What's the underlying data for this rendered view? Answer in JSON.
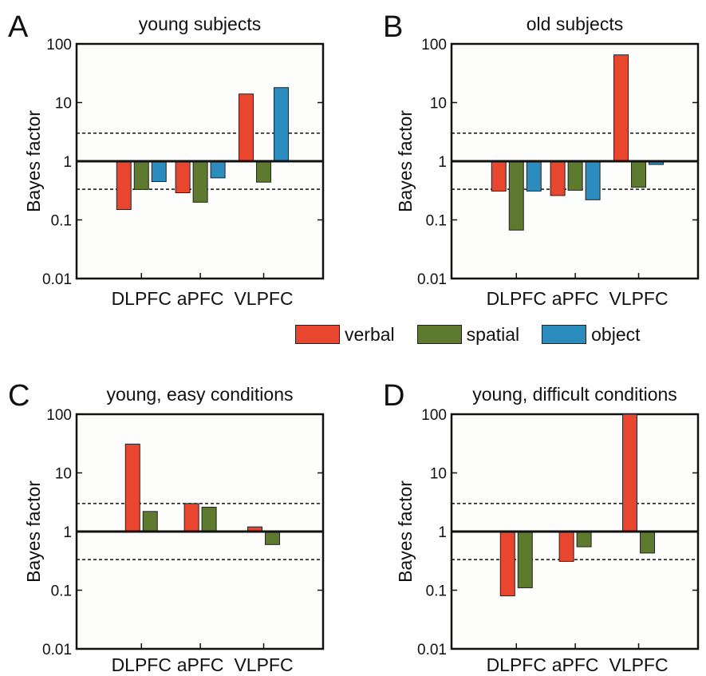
{
  "figure": {
    "panels": [
      {
        "letter": "A",
        "title": "young subjects"
      },
      {
        "letter": "B",
        "title": "old subjects"
      },
      {
        "letter": "C",
        "title": "young, easy conditions"
      },
      {
        "letter": "D",
        "title": "young, difficult conditions"
      }
    ],
    "legend": [
      {
        "label": "verbal",
        "color": "#e8462e"
      },
      {
        "label": "spatial",
        "color": "#5e7a2e"
      },
      {
        "label": "object",
        "color": "#2b8cbd"
      }
    ]
  },
  "chart_data": [
    {
      "type": "bar",
      "panel": "A",
      "title": "young subjects",
      "ylabel": "Bayes factor",
      "yscale": "log",
      "ylim": [
        0.01,
        100
      ],
      "yticks": [
        "0.01",
        "0.1",
        "1",
        "10",
        "100"
      ],
      "baseline": 1,
      "reference_lines": [
        3,
        0.333
      ],
      "categories": [
        "DLPFC",
        "aPFC",
        "VLPFC"
      ],
      "series": [
        {
          "name": "verbal",
          "values": [
            0.15,
            0.29,
            14
          ]
        },
        {
          "name": "spatial",
          "values": [
            0.33,
            0.2,
            0.44
          ]
        },
        {
          "name": "object",
          "values": [
            0.45,
            0.52,
            18
          ]
        }
      ]
    },
    {
      "type": "bar",
      "panel": "B",
      "title": "old subjects",
      "ylabel": "Bayes factor",
      "yscale": "log",
      "ylim": [
        0.01,
        100
      ],
      "yticks": [
        "0.01",
        "0.1",
        "1",
        "10",
        "100"
      ],
      "baseline": 1,
      "reference_lines": [
        3,
        0.333
      ],
      "categories": [
        "DLPFC",
        "aPFC",
        "VLPFC"
      ],
      "series": [
        {
          "name": "verbal",
          "values": [
            0.31,
            0.26,
            65
          ]
        },
        {
          "name": "spatial",
          "values": [
            0.067,
            0.32,
            0.36
          ]
        },
        {
          "name": "object",
          "values": [
            0.31,
            0.22,
            0.88
          ]
        }
      ]
    },
    {
      "type": "bar",
      "panel": "C",
      "title": "young, easy conditions",
      "ylabel": "Bayes factor",
      "yscale": "log",
      "ylim": [
        0.01,
        100
      ],
      "yticks": [
        "0.01",
        "0.1",
        "1",
        "10",
        "100"
      ],
      "baseline": 1,
      "reference_lines": [
        3,
        0.333
      ],
      "categories": [
        "DLPFC",
        "aPFC",
        "VLPFC"
      ],
      "series": [
        {
          "name": "verbal",
          "values": [
            31,
            3.0,
            1.2
          ]
        },
        {
          "name": "spatial",
          "values": [
            2.2,
            2.6,
            0.6
          ]
        }
      ]
    },
    {
      "type": "bar",
      "panel": "D",
      "title": "young, difficult conditions",
      "ylabel": "Bayes factor",
      "yscale": "log",
      "ylim": [
        0.01,
        100
      ],
      "yticks": [
        "0.01",
        "0.1",
        "1",
        "10",
        "100"
      ],
      "baseline": 1,
      "reference_lines": [
        3,
        0.333
      ],
      "categories": [
        "DLPFC",
        "aPFC",
        "VLPFC"
      ],
      "series": [
        {
          "name": "verbal",
          "values": [
            0.08,
            0.31,
            100
          ]
        },
        {
          "name": "spatial",
          "values": [
            0.11,
            0.55,
            0.43
          ]
        }
      ]
    }
  ]
}
